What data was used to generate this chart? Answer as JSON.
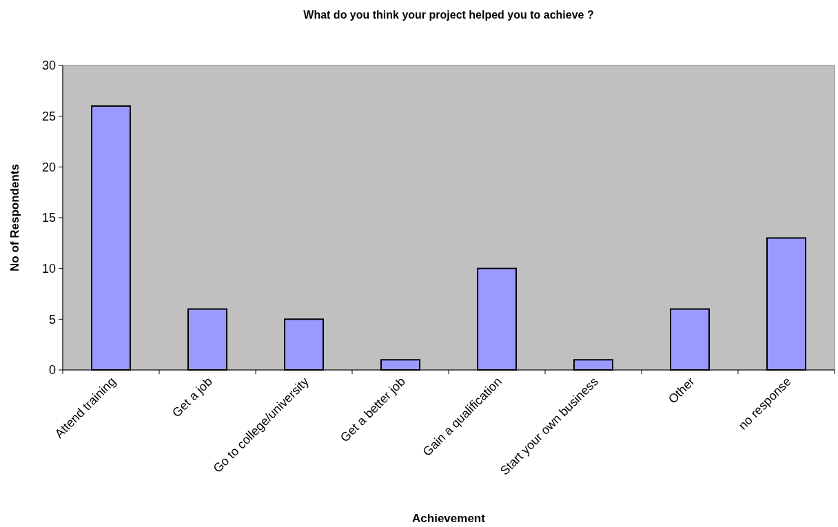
{
  "chart_data": {
    "type": "bar",
    "title": "What do you think your project helped you to achieve ?",
    "xlabel": "Achievement",
    "ylabel": "No of Respondents",
    "categories": [
      "Attend training",
      "Get a job",
      "Go to college/university",
      "Get a better job",
      "Gain a qualification",
      "Start your own business",
      "Other",
      "no response"
    ],
    "values": [
      26,
      6,
      5,
      1,
      10,
      1,
      6,
      13
    ],
    "color": "#9999ff",
    "ylim": [
      0,
      30
    ],
    "yticks": [
      0,
      5,
      10,
      15,
      20,
      25,
      30
    ],
    "grid": false
  }
}
